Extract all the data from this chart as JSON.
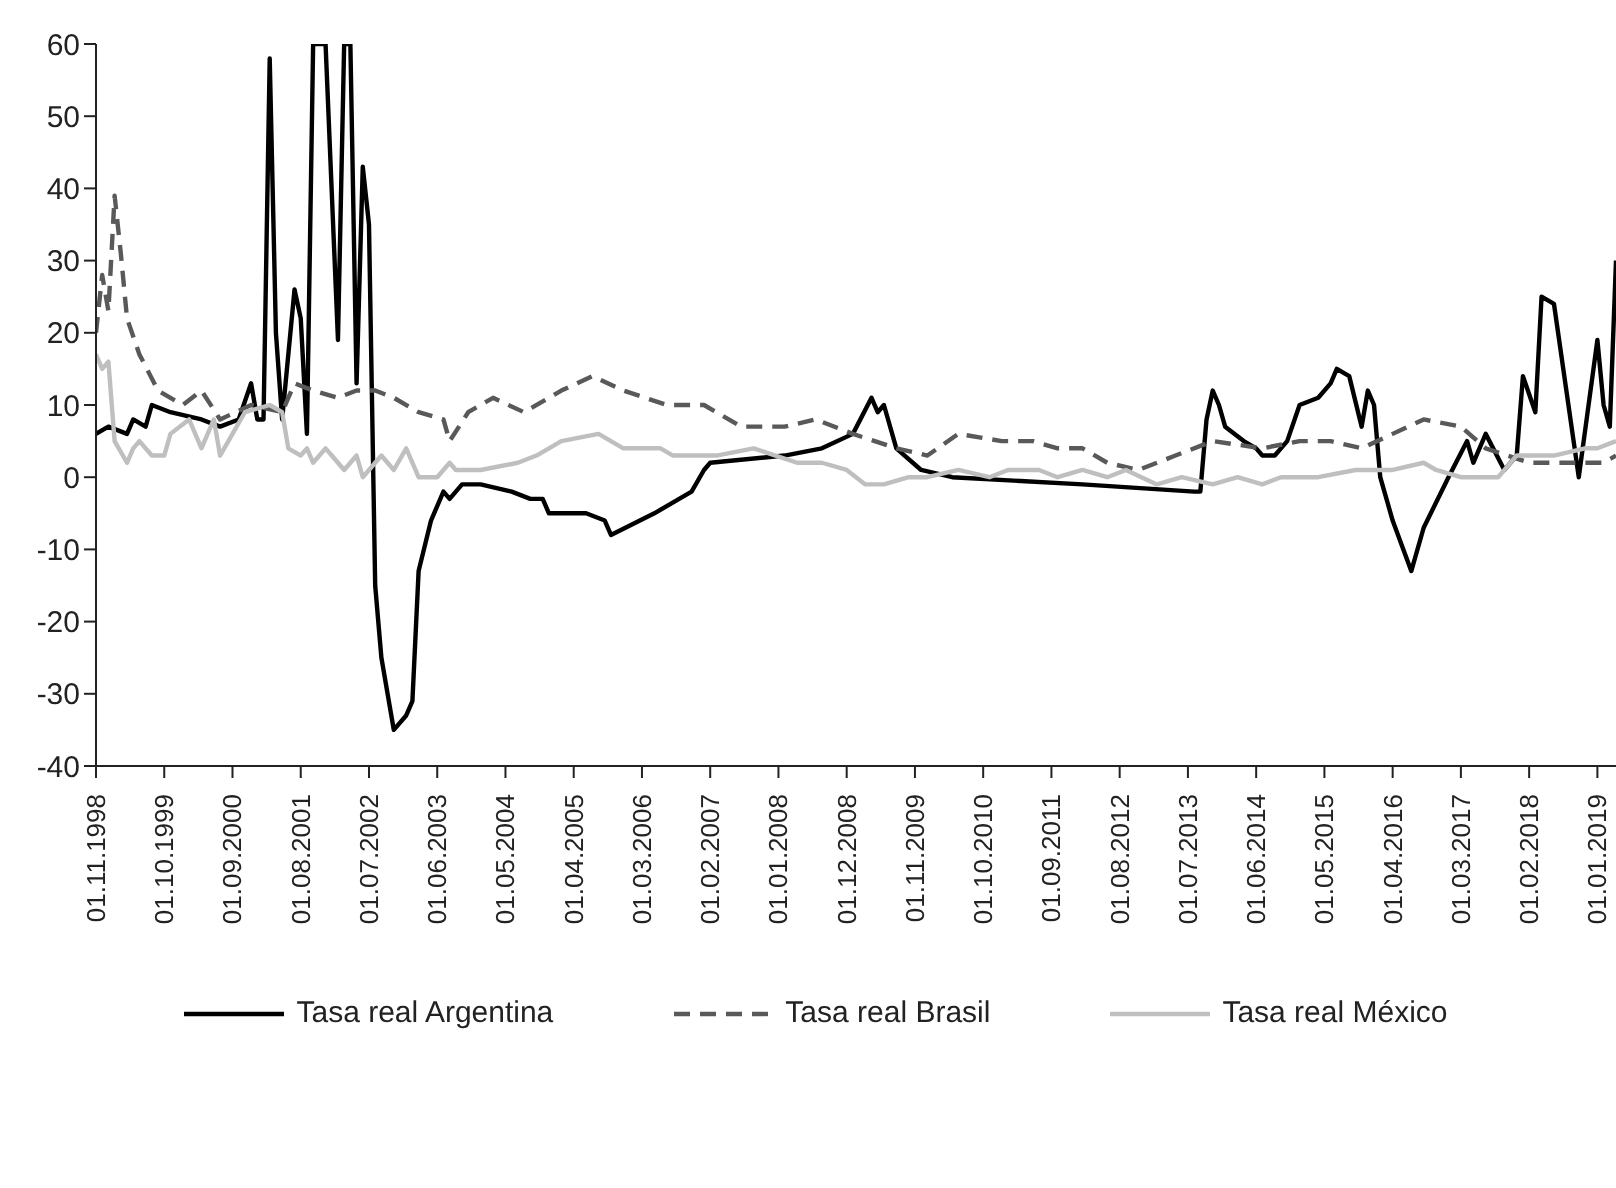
{
  "chart_data": {
    "type": "line",
    "legend": "bottom",
    "grid": false,
    "marker": "none",
    "ylim": [
      -40,
      60
    ],
    "yticks": [
      -40,
      -30,
      -20,
      -10,
      0,
      10,
      20,
      30,
      40,
      50,
      60
    ],
    "xlim": [
      "1998-11",
      "2019-04"
    ],
    "xticks": [
      {
        "value": "1998-11",
        "label": "01.11.1998"
      },
      {
        "value": "1999-10",
        "label": "01.10.1999"
      },
      {
        "value": "2000-09",
        "label": "01.09.2000"
      },
      {
        "value": "2001-08",
        "label": "01.08.2001"
      },
      {
        "value": "2002-07",
        "label": "01.07.2002"
      },
      {
        "value": "2003-06",
        "label": "01.06.2003"
      },
      {
        "value": "2004-05",
        "label": "01.05.2004"
      },
      {
        "value": "2005-04",
        "label": "01.04.2005"
      },
      {
        "value": "2006-03",
        "label": "01.03.2006"
      },
      {
        "value": "2007-02",
        "label": "01.02.2007"
      },
      {
        "value": "2008-01",
        "label": "01.01.2008"
      },
      {
        "value": "2008-12",
        "label": "01.12.2008"
      },
      {
        "value": "2009-11",
        "label": "01.11.2009"
      },
      {
        "value": "2010-10",
        "label": "01.10.2010"
      },
      {
        "value": "2011-09",
        "label": "01.09.2011"
      },
      {
        "value": "2012-08",
        "label": "01.08.2012"
      },
      {
        "value": "2013-07",
        "label": "01.07.2013"
      },
      {
        "value": "2014-06",
        "label": "01.06.2014"
      },
      {
        "value": "2015-05",
        "label": "01.05.2015"
      },
      {
        "value": "2016-04",
        "label": "01.04.2016"
      },
      {
        "value": "2017-03",
        "label": "01.03.2017"
      },
      {
        "value": "2018-02",
        "label": "01.02.2018"
      },
      {
        "value": "2019-01",
        "label": "01.01.2019"
      }
    ],
    "series": [
      {
        "name": "Tasa real Argentina",
        "color": "#000000",
        "line_style": "solid",
        "x": [
          "1998-11",
          "1999-01",
          "1999-04",
          "1999-05",
          "1999-07",
          "1999-08",
          "1999-11",
          "2000-04",
          "2000-07",
          "2000-10",
          "2000-12",
          "2001-01",
          "2001-02",
          "2001-03",
          "2001-04",
          "2001-05",
          "2001-07",
          "2001-08",
          "2001-09",
          "2001-10",
          "2001-12",
          "2002-02",
          "2002-03",
          "2002-04",
          "2002-05",
          "2002-06",
          "2002-07",
          "2002-08",
          "2002-09",
          "2002-10",
          "2002-11",
          "2003-01",
          "2003-02",
          "2003-03",
          "2003-05",
          "2003-07",
          "2003-08",
          "2003-10",
          "2004-01",
          "2004-06",
          "2004-09",
          "2004-11",
          "2004-12",
          "2005-06",
          "2005-09",
          "2005-10",
          "2006-05",
          "2006-11",
          "2007-01",
          "2007-02",
          "2008-02",
          "2008-08",
          "2009-01",
          "2009-04",
          "2009-05",
          "2009-06",
          "2009-08",
          "2009-12",
          "2010-05",
          "2012-02",
          "2013-08",
          "2013-09",
          "2013-10",
          "2013-11",
          "2013-12",
          "2014-01",
          "2014-04",
          "2014-06",
          "2014-07",
          "2014-09",
          "2014-11",
          "2015-01",
          "2015-04",
          "2015-06",
          "2015-07",
          "2015-09",
          "2015-11",
          "2015-12",
          "2016-01",
          "2016-02",
          "2016-04",
          "2016-07",
          "2016-09",
          "2017-01",
          "2017-04",
          "2017-05",
          "2017-07",
          "2017-10",
          "2017-12",
          "2018-01",
          "2018-03",
          "2018-04",
          "2018-06",
          "2018-10",
          "2019-01",
          "2019-02",
          "2019-03",
          "2019-04"
        ],
        "values": [
          6,
          7,
          6,
          8,
          7,
          10,
          9,
          8,
          7,
          8,
          13,
          8,
          8,
          58,
          20,
          8,
          26,
          22,
          6,
          60,
          60,
          19,
          60,
          60,
          13,
          43,
          35,
          -15,
          -25,
          -30,
          -35,
          -33,
          -31,
          -13,
          -6,
          -2,
          -3,
          -1,
          -1,
          -2,
          -3,
          -3,
          -5,
          -5,
          -6,
          -8,
          -5,
          -2,
          1,
          2,
          3,
          4,
          6,
          11,
          9,
          10,
          4,
          1,
          0,
          -1,
          -2,
          -2,
          8,
          12,
          10,
          7,
          5,
          4,
          3,
          3,
          5,
          10,
          11,
          13,
          15,
          14,
          7,
          12,
          10,
          0,
          -6,
          -13,
          -7,
          0,
          5,
          2,
          6,
          1,
          3,
          14,
          9,
          25,
          24,
          0,
          19,
          10,
          7,
          30
        ]
      },
      {
        "name": "Tasa real Brasil",
        "color": "#595959",
        "line_style": "dashed",
        "x": [
          "1998-11",
          "1998-12",
          "1999-01",
          "1999-02",
          "1999-03",
          "1999-04",
          "1999-06",
          "1999-09",
          "2000-01",
          "2000-04",
          "2000-07",
          "2000-12",
          "2001-05",
          "2001-07",
          "2001-10",
          "2002-02",
          "2002-05",
          "2002-08",
          "2002-11",
          "2003-03",
          "2003-07",
          "2003-08",
          "2003-11",
          "2004-03",
          "2004-08",
          "2005-02",
          "2005-07",
          "2005-12",
          "2006-07",
          "2007-01",
          "2007-07",
          "2008-02",
          "2008-07",
          "2009-01",
          "2009-08",
          "2010-01",
          "2010-06",
          "2011-01",
          "2011-06",
          "2011-10",
          "2012-02",
          "2012-06",
          "2012-11",
          "2013-05",
          "2013-11",
          "2014-07",
          "2015-01",
          "2015-06",
          "2015-11",
          "2016-04",
          "2016-09",
          "2017-03",
          "2017-07",
          "2018-02",
          "2018-08",
          "2019-02",
          "2019-04"
        ],
        "values": [
          20,
          28,
          23,
          39,
          31,
          22,
          17,
          12,
          10,
          12,
          8,
          10,
          9,
          13,
          12,
          11,
          12,
          12,
          11,
          9,
          8,
          5,
          9,
          11,
          9,
          12,
          14,
          12,
          10,
          10,
          7,
          7,
          8,
          6,
          4,
          3,
          6,
          5,
          5,
          4,
          4,
          2,
          1,
          3,
          5,
          4,
          5,
          5,
          4,
          6,
          8,
          7,
          4,
          2,
          2,
          2,
          3
        ]
      },
      {
        "name": "Tasa real México",
        "color": "#bfbfbf",
        "line_style": "solid",
        "x": [
          "1998-11",
          "1998-12",
          "1999-01",
          "1999-02",
          "1999-04",
          "1999-05",
          "1999-06",
          "1999-08",
          "1999-10",
          "1999-11",
          "2000-02",
          "2000-04",
          "2000-06",
          "2000-07",
          "2000-09",
          "2000-11",
          "2001-03",
          "2001-05",
          "2001-06",
          "2001-08",
          "2001-09",
          "2001-10",
          "2001-12",
          "2002-01",
          "2002-03",
          "2002-05",
          "2002-06",
          "2002-09",
          "2002-11",
          "2003-01",
          "2003-03",
          "2003-06",
          "2003-08",
          "2003-09",
          "2004-01",
          "2004-07",
          "2004-10",
          "2005-02",
          "2005-08",
          "2005-12",
          "2006-06",
          "2006-08",
          "2007-02",
          "2007-03",
          "2007-09",
          "2008-04",
          "2008-08",
          "2008-12",
          "2009-03",
          "2009-06",
          "2009-10",
          "2010-01",
          "2010-06",
          "2010-11",
          "2011-02",
          "2011-07",
          "2011-10",
          "2012-02",
          "2012-06",
          "2012-09",
          "2013-02",
          "2013-06",
          "2013-11",
          "2014-03",
          "2014-07",
          "2014-10",
          "2015-04",
          "2015-10",
          "2016-01",
          "2016-04",
          "2016-09",
          "2016-11",
          "2017-03",
          "2017-09",
          "2017-12",
          "2018-06",
          "2018-11",
          "2019-01",
          "2019-04"
        ],
        "values": [
          17,
          15,
          16,
          5,
          2,
          4,
          5,
          3,
          3,
          6,
          8,
          4,
          8,
          3,
          6,
          9,
          10,
          9,
          4,
          3,
          4,
          2,
          4,
          3,
          1,
          3,
          0,
          3,
          1,
          4,
          0,
          0,
          2,
          1,
          1,
          2,
          3,
          5,
          6,
          4,
          4,
          3,
          3,
          3,
          4,
          2,
          2,
          1,
          -1,
          -1,
          0,
          0,
          1,
          0,
          1,
          1,
          0,
          1,
          0,
          1,
          -1,
          0,
          -1,
          0,
          -1,
          0,
          0,
          1,
          1,
          1,
          2,
          1,
          0,
          0,
          3,
          3,
          4,
          4,
          5
        ]
      }
    ]
  }
}
